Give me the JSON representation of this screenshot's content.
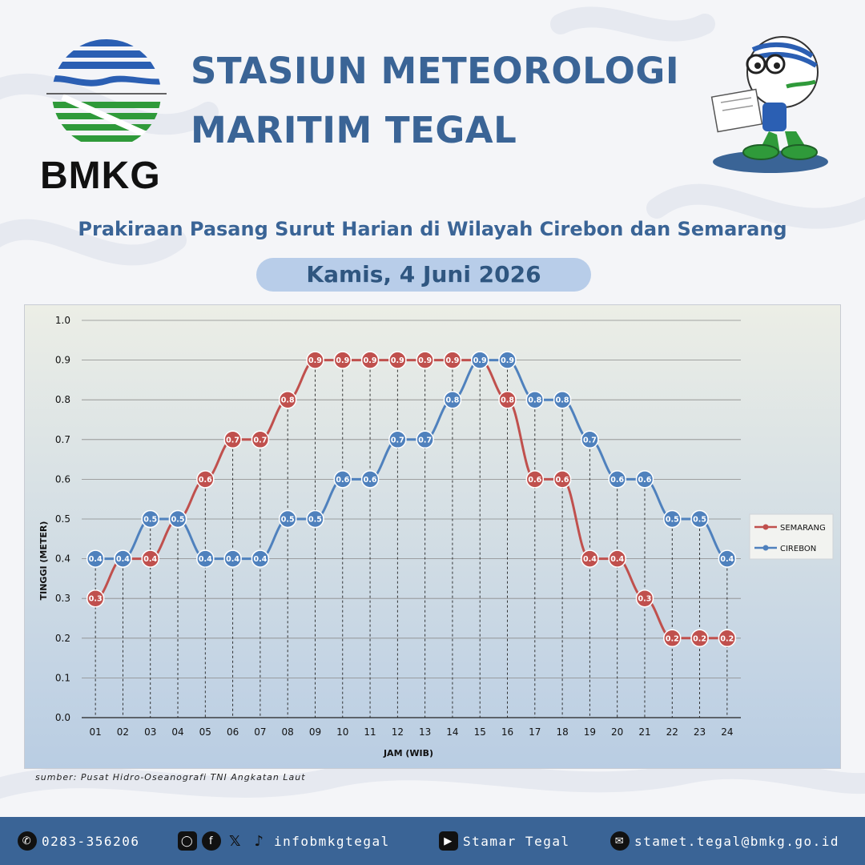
{
  "brand": {
    "logo_text": "BMKG"
  },
  "header": {
    "title_line1": "STASIUN METEOROLOGI",
    "title_line2": "MARITIM TEGAL",
    "subtitle": "Prakiraan Pasang Surut Harian di Wilayah Cirebon dan Semarang",
    "date": "Kamis, 4 Juni 2026"
  },
  "source": "sumber: Pusat Hidro-Oseanografi TNI Angkatan Laut",
  "footer": {
    "phone": "0283-356206",
    "social": "infobmkgtegal",
    "youtube": "Stamar Tegal",
    "email": "stamet.tegal@bmkg.go.id"
  },
  "colors": {
    "semarang": "#c0504d",
    "cirebon": "#4f81bd",
    "brand": "#3a6496"
  },
  "chart_data": {
    "type": "line",
    "xlabel": "JAM (WIB)",
    "ylabel": "TINGGI (METER)",
    "ylim": [
      0,
      1.0
    ],
    "yticks": [
      "0.0",
      "0.1",
      "0.2",
      "0.3",
      "0.4",
      "0.5",
      "0.6",
      "0.7",
      "0.8",
      "0.9",
      "1.0"
    ],
    "categories": [
      "01",
      "02",
      "03",
      "04",
      "05",
      "06",
      "07",
      "08",
      "09",
      "10",
      "11",
      "12",
      "13",
      "14",
      "15",
      "16",
      "17",
      "18",
      "19",
      "20",
      "21",
      "22",
      "23",
      "24"
    ],
    "legend_position": "right",
    "grid": true,
    "series": [
      {
        "name": "SEMARANG",
        "color": "#c0504d",
        "values": [
          0.3,
          0.4,
          0.4,
          0.5,
          0.6,
          0.7,
          0.7,
          0.8,
          0.9,
          0.9,
          0.9,
          0.9,
          0.9,
          0.9,
          0.9,
          0.8,
          0.6,
          0.6,
          0.4,
          0.4,
          0.3,
          0.2,
          0.2,
          0.2
        ]
      },
      {
        "name": "CIREBON",
        "color": "#4f81bd",
        "values": [
          0.4,
          0.4,
          0.5,
          0.5,
          0.4,
          0.4,
          0.4,
          0.5,
          0.5,
          0.6,
          0.6,
          0.7,
          0.7,
          0.8,
          0.9,
          0.9,
          0.8,
          0.8,
          0.7,
          0.6,
          0.6,
          0.5,
          0.5,
          0.4
        ]
      }
    ]
  }
}
